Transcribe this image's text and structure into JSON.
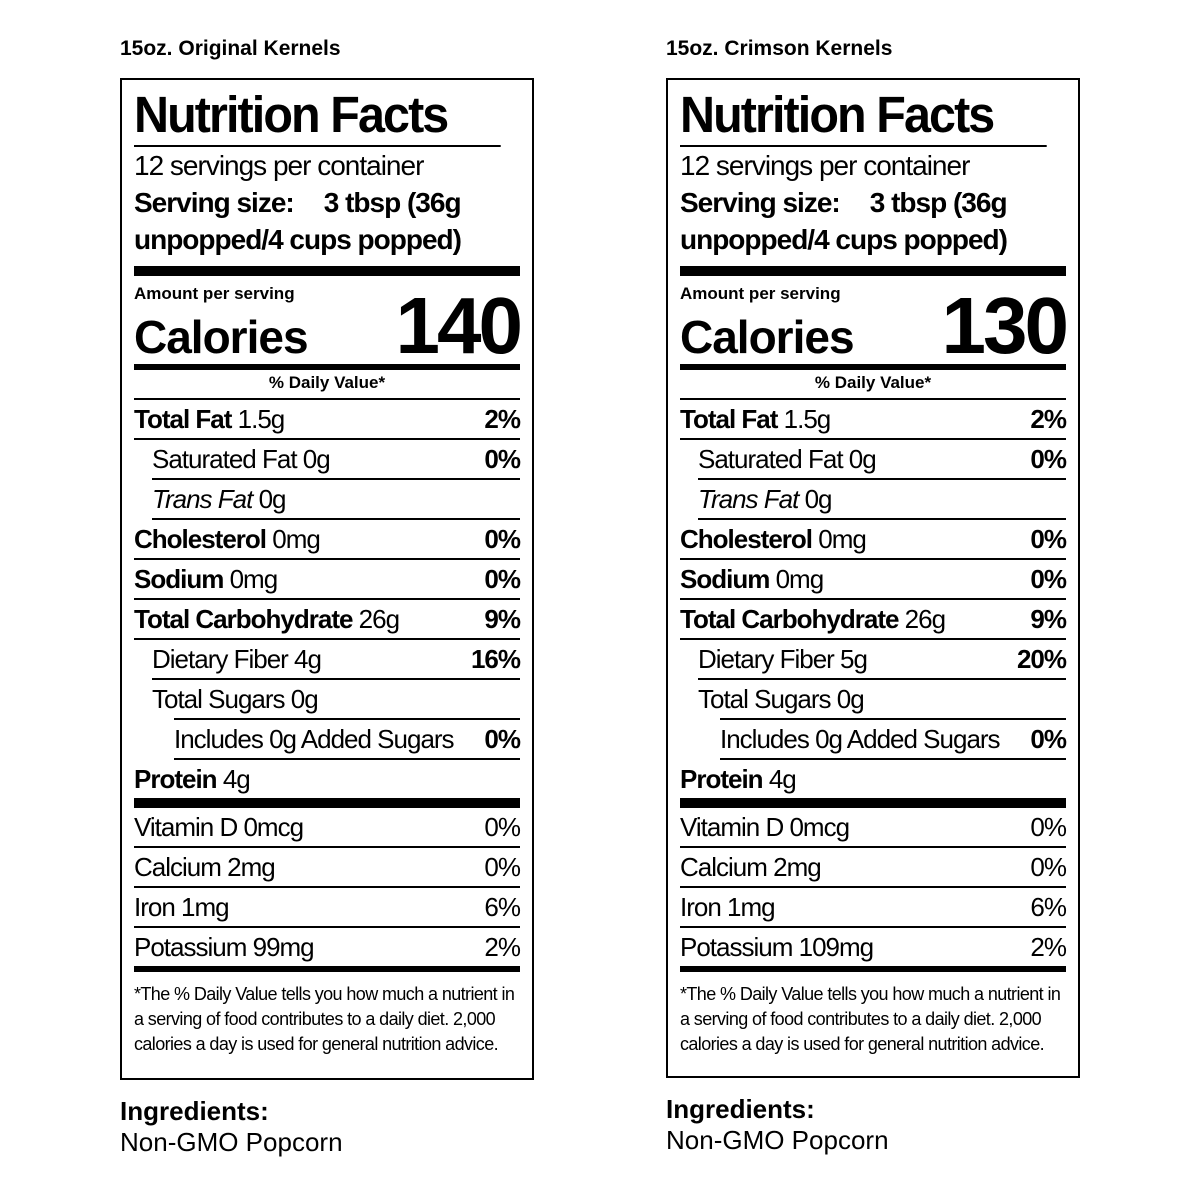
{
  "products": [
    {
      "name": "15oz. Original Kernels",
      "title": "Nutrition Facts",
      "servings": "12 servings per container",
      "serving_size_label": "Serving size:",
      "serving_size_value_1": "3 tbsp (36g",
      "serving_size_value_2": "unpopped/4 cups popped)",
      "amount_per_serving": "Amount per serving",
      "calories_label": "Calories",
      "calories": "140",
      "dv_header": "% Daily Value*",
      "total_fat": {
        "label": "Total Fat",
        "value": "1.5g",
        "dv": "2%"
      },
      "saturated_fat": {
        "label": "Saturated Fat 0g",
        "dv": "0%"
      },
      "trans_fat": {
        "label": "Trans Fat",
        "value": "0g"
      },
      "cholesterol": {
        "label": "Cholesterol",
        "value": "0mg",
        "dv": "0%"
      },
      "sodium": {
        "label": "Sodium",
        "value": "0mg",
        "dv": "0%"
      },
      "total_carb": {
        "label": "Total Carbohydrate",
        "value": "26g",
        "dv": "9%"
      },
      "fiber": {
        "label": "Dietary Fiber 4g",
        "dv": "16%"
      },
      "sugars": {
        "label": "Total Sugars 0g"
      },
      "added_sugars": {
        "label": "Includes 0g Added Sugars",
        "dv": "0%"
      },
      "protein": {
        "label": "Protein",
        "value": "4g"
      },
      "vitamin_d": {
        "label": "Vitamin D 0mcg",
        "dv": "0%"
      },
      "calcium": {
        "label": "Calcium 2mg",
        "dv": "0%"
      },
      "iron": {
        "label": "Iron 1mg",
        "dv": "6%"
      },
      "potassium": {
        "label": "Potassium 99mg",
        "dv": "2%"
      },
      "footnote": "*The % Daily Value tells you how much a nutrient in a serving of food contributes to a daily diet. 2,000 calories a day is used for general nutrition advice.",
      "ingredients_title": "Ingredients:",
      "ingredients": "Non-GMO Popcorn"
    },
    {
      "name": "15oz. Crimson Kernels",
      "title": "Nutrition Facts",
      "servings": "12 servings per container",
      "serving_size_label": "Serving size:",
      "serving_size_value_1": "3 tbsp (36g",
      "serving_size_value_2": "unpopped/4 cups popped)",
      "amount_per_serving": "Amount per serving",
      "calories_label": "Calories",
      "calories": "130",
      "dv_header": "% Daily Value*",
      "total_fat": {
        "label": "Total Fat",
        "value": "1.5g",
        "dv": "2%"
      },
      "saturated_fat": {
        "label": "Saturated Fat 0g",
        "dv": "0%"
      },
      "trans_fat": {
        "label": "Trans Fat",
        "value": "0g"
      },
      "cholesterol": {
        "label": "Cholesterol",
        "value": "0mg",
        "dv": "0%"
      },
      "sodium": {
        "label": "Sodium",
        "value": "0mg",
        "dv": "0%"
      },
      "total_carb": {
        "label": "Total Carbohydrate",
        "value": "26g",
        "dv": "9%"
      },
      "fiber": {
        "label": "Dietary Fiber 5g",
        "dv": "20%"
      },
      "sugars": {
        "label": "Total Sugars 0g"
      },
      "added_sugars": {
        "label": "Includes 0g Added Sugars",
        "dv": "0%"
      },
      "protein": {
        "label": "Protein",
        "value": "4g"
      },
      "vitamin_d": {
        "label": "Vitamin D 0mcg",
        "dv": "0%"
      },
      "calcium": {
        "label": "Calcium 2mg",
        "dv": "0%"
      },
      "iron": {
        "label": "Iron 1mg",
        "dv": "6%"
      },
      "potassium": {
        "label": "Potassium 109mg",
        "dv": "2%"
      },
      "footnote": "*The % Daily Value tells you how much a nutrient in a serving of food contributes to a daily diet. 2,000 calories a day is used for general nutrition advice.",
      "ingredients_title": "Ingredients:",
      "ingredients": "Non-GMO Popcorn"
    }
  ]
}
